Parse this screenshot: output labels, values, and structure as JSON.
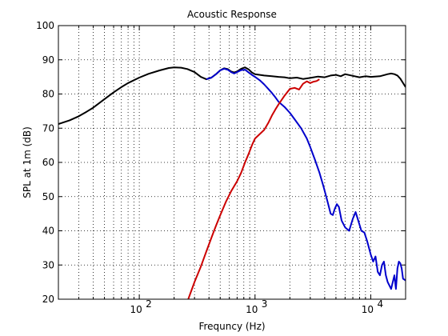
{
  "chart_data": {
    "type": "line",
    "title": "Acoustic Response",
    "xlabel": "Frequncy (Hz)",
    "ylabel": "SPL at 1m (dB)",
    "x_scale": "log",
    "xlim": [
      20,
      20000
    ],
    "ylim": [
      20,
      100
    ],
    "yticks": [
      20,
      30,
      40,
      50,
      60,
      70,
      80,
      90,
      100
    ],
    "xticks": [
      {
        "value": 100,
        "base": "10",
        "exp": "2"
      },
      {
        "value": 1000,
        "base": "10",
        "exp": "3"
      },
      {
        "value": 10000,
        "base": "10",
        "exp": "4"
      }
    ],
    "grid": true,
    "grid_style": "dotted",
    "legend": "none",
    "series": [
      {
        "color": "#000000",
        "points": [
          [
            20,
            71.2
          ],
          [
            25,
            72.3
          ],
          [
            30,
            73.5
          ],
          [
            35,
            74.8
          ],
          [
            40,
            76.0
          ],
          [
            50,
            78.5
          ],
          [
            60,
            80.5
          ],
          [
            70,
            82.0
          ],
          [
            80,
            83.2
          ],
          [
            100,
            84.8
          ],
          [
            120,
            85.9
          ],
          [
            150,
            86.9
          ],
          [
            180,
            87.6
          ],
          [
            200,
            87.8
          ],
          [
            230,
            87.7
          ],
          [
            260,
            87.3
          ],
          [
            300,
            86.4
          ],
          [
            340,
            85.0
          ],
          [
            380,
            84.3
          ],
          [
            420,
            84.8
          ],
          [
            460,
            85.8
          ],
          [
            500,
            86.9
          ],
          [
            540,
            87.5
          ],
          [
            580,
            87.3
          ],
          [
            620,
            86.6
          ],
          [
            660,
            86.3
          ],
          [
            700,
            86.6
          ],
          [
            760,
            87.4
          ],
          [
            820,
            87.8
          ],
          [
            880,
            87.2
          ],
          [
            940,
            86.3
          ],
          [
            1000,
            85.8
          ],
          [
            1200,
            85.4
          ],
          [
            1400,
            85.2
          ],
          [
            1600,
            85.0
          ],
          [
            1800,
            84.9
          ],
          [
            2000,
            84.6
          ],
          [
            2300,
            84.8
          ],
          [
            2600,
            84.4
          ],
          [
            3000,
            84.7
          ],
          [
            3500,
            85.1
          ],
          [
            4000,
            84.9
          ],
          [
            4500,
            85.4
          ],
          [
            5000,
            85.6
          ],
          [
            5500,
            85.2
          ],
          [
            6000,
            85.8
          ],
          [
            7000,
            85.3
          ],
          [
            8000,
            84.9
          ],
          [
            9000,
            85.2
          ],
          [
            10000,
            85.0
          ],
          [
            12000,
            85.2
          ],
          [
            14000,
            85.8
          ],
          [
            15000,
            86.0
          ],
          [
            16000,
            85.8
          ],
          [
            17000,
            85.4
          ],
          [
            18000,
            84.5
          ],
          [
            20000,
            82.0
          ]
        ]
      },
      {
        "color": "#0000cc",
        "points": [
          [
            380,
            84.3
          ],
          [
            420,
            84.8
          ],
          [
            460,
            85.8
          ],
          [
            500,
            86.9
          ],
          [
            540,
            87.4
          ],
          [
            580,
            87.1
          ],
          [
            620,
            86.4
          ],
          [
            660,
            86.0
          ],
          [
            700,
            86.4
          ],
          [
            760,
            87.0
          ],
          [
            820,
            87.1
          ],
          [
            880,
            86.3
          ],
          [
            940,
            85.6
          ],
          [
            1000,
            85.0
          ],
          [
            1100,
            84.0
          ],
          [
            1200,
            82.8
          ],
          [
            1300,
            81.5
          ],
          [
            1400,
            80.3
          ],
          [
            1500,
            79.0
          ],
          [
            1600,
            77.7
          ],
          [
            1800,
            76.2
          ],
          [
            2000,
            74.5
          ],
          [
            2200,
            72.6
          ],
          [
            2500,
            70.0
          ],
          [
            2800,
            67.0
          ],
          [
            3000,
            64.5
          ],
          [
            3300,
            60.7
          ],
          [
            3600,
            57.0
          ],
          [
            3900,
            53.0
          ],
          [
            4200,
            49.0
          ],
          [
            4500,
            45.0
          ],
          [
            4700,
            44.6
          ],
          [
            4900,
            46.5
          ],
          [
            5100,
            47.8
          ],
          [
            5300,
            47.0
          ],
          [
            5600,
            43.0
          ],
          [
            6000,
            41.0
          ],
          [
            6500,
            40.0
          ],
          [
            7000,
            43.5
          ],
          [
            7400,
            45.5
          ],
          [
            7800,
            43.0
          ],
          [
            8300,
            40.0
          ],
          [
            8800,
            39.5
          ],
          [
            9300,
            37.0
          ],
          [
            10000,
            33.0
          ],
          [
            10500,
            31.0
          ],
          [
            11000,
            32.5
          ],
          [
            11500,
            28.0
          ],
          [
            12000,
            27.0
          ],
          [
            12500,
            30.0
          ],
          [
            13000,
            31.0
          ],
          [
            13500,
            27.0
          ],
          [
            14000,
            25.0
          ],
          [
            15000,
            23.0
          ],
          [
            16000,
            27.0
          ],
          [
            16500,
            23.0
          ],
          [
            17000,
            29.0
          ],
          [
            17500,
            31.0
          ],
          [
            18000,
            30.5
          ],
          [
            18500,
            29.0
          ],
          [
            19000,
            26.0
          ],
          [
            20000,
            25.5
          ]
        ]
      },
      {
        "color": "#cc0000",
        "points": [
          [
            265,
            20.0
          ],
          [
            300,
            25.0
          ],
          [
            340,
            29.5
          ],
          [
            380,
            34.0
          ],
          [
            420,
            38.0
          ],
          [
            460,
            41.5
          ],
          [
            500,
            44.5
          ],
          [
            560,
            48.5
          ],
          [
            620,
            51.5
          ],
          [
            700,
            54.5
          ],
          [
            760,
            57.0
          ],
          [
            820,
            60.0
          ],
          [
            880,
            62.5
          ],
          [
            940,
            65.0
          ],
          [
            1000,
            67.0
          ],
          [
            1100,
            68.3
          ],
          [
            1200,
            69.5
          ],
          [
            1300,
            71.5
          ],
          [
            1400,
            73.7
          ],
          [
            1500,
            75.5
          ],
          [
            1600,
            77.0
          ],
          [
            1700,
            78.3
          ],
          [
            1800,
            79.5
          ],
          [
            2000,
            81.5
          ],
          [
            2200,
            81.8
          ],
          [
            2400,
            81.3
          ],
          [
            2600,
            83.0
          ],
          [
            2800,
            83.7
          ],
          [
            3000,
            83.2
          ],
          [
            3200,
            83.6
          ],
          [
            3400,
            83.8
          ],
          [
            3600,
            84.3
          ]
        ]
      }
    ]
  }
}
